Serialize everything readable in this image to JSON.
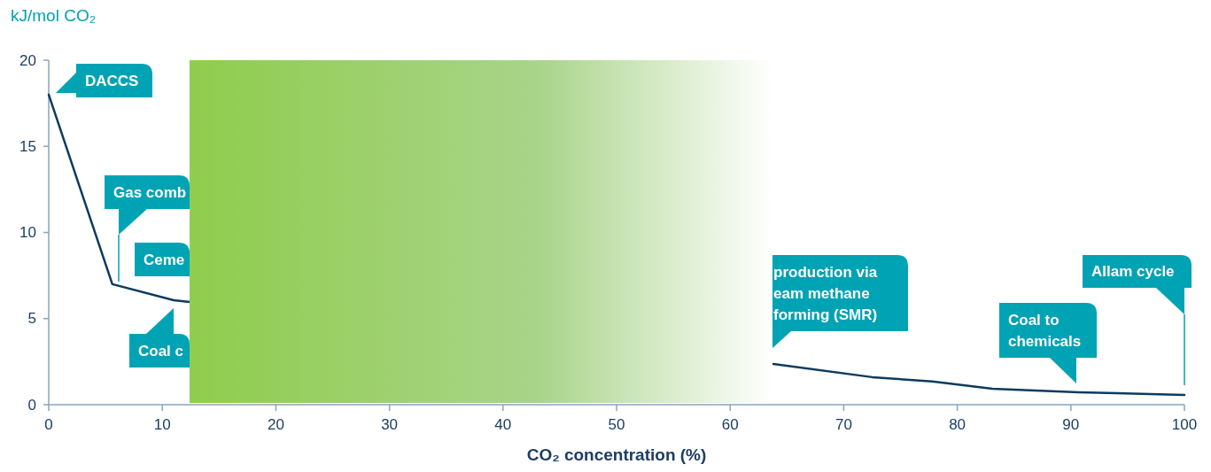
{
  "chart_data": {
    "type": "line",
    "ylabel": "kJ/mol CO₂",
    "xlabel": "CO₂ concentration (%)",
    "xlim": [
      0,
      100
    ],
    "xticks": [
      0,
      10,
      20,
      30,
      40,
      50,
      60,
      70,
      80,
      90,
      100
    ],
    "ylim": [
      0,
      20
    ],
    "yticks": [
      0,
      5,
      10,
      15,
      20
    ],
    "series": [
      {
        "color": "#0d3a5f",
        "x": [
          0,
          5.6,
          11,
          12.4,
          40,
          63.8,
          72.5,
          77.8,
          83.1,
          90.7,
          100
        ],
        "values": [
          18,
          7.0,
          6.07,
          5.96,
          null,
          2.37,
          1.6,
          1.35,
          0.93,
          0.72,
          0.57
        ]
      }
    ],
    "annotations": [
      "DACCS",
      "Gas comb",
      "Ceme",
      "Coal c",
      "production via\neam methane\nforming (SMR)",
      "Coal to\nchemicals",
      "Allam cycle"
    ]
  }
}
